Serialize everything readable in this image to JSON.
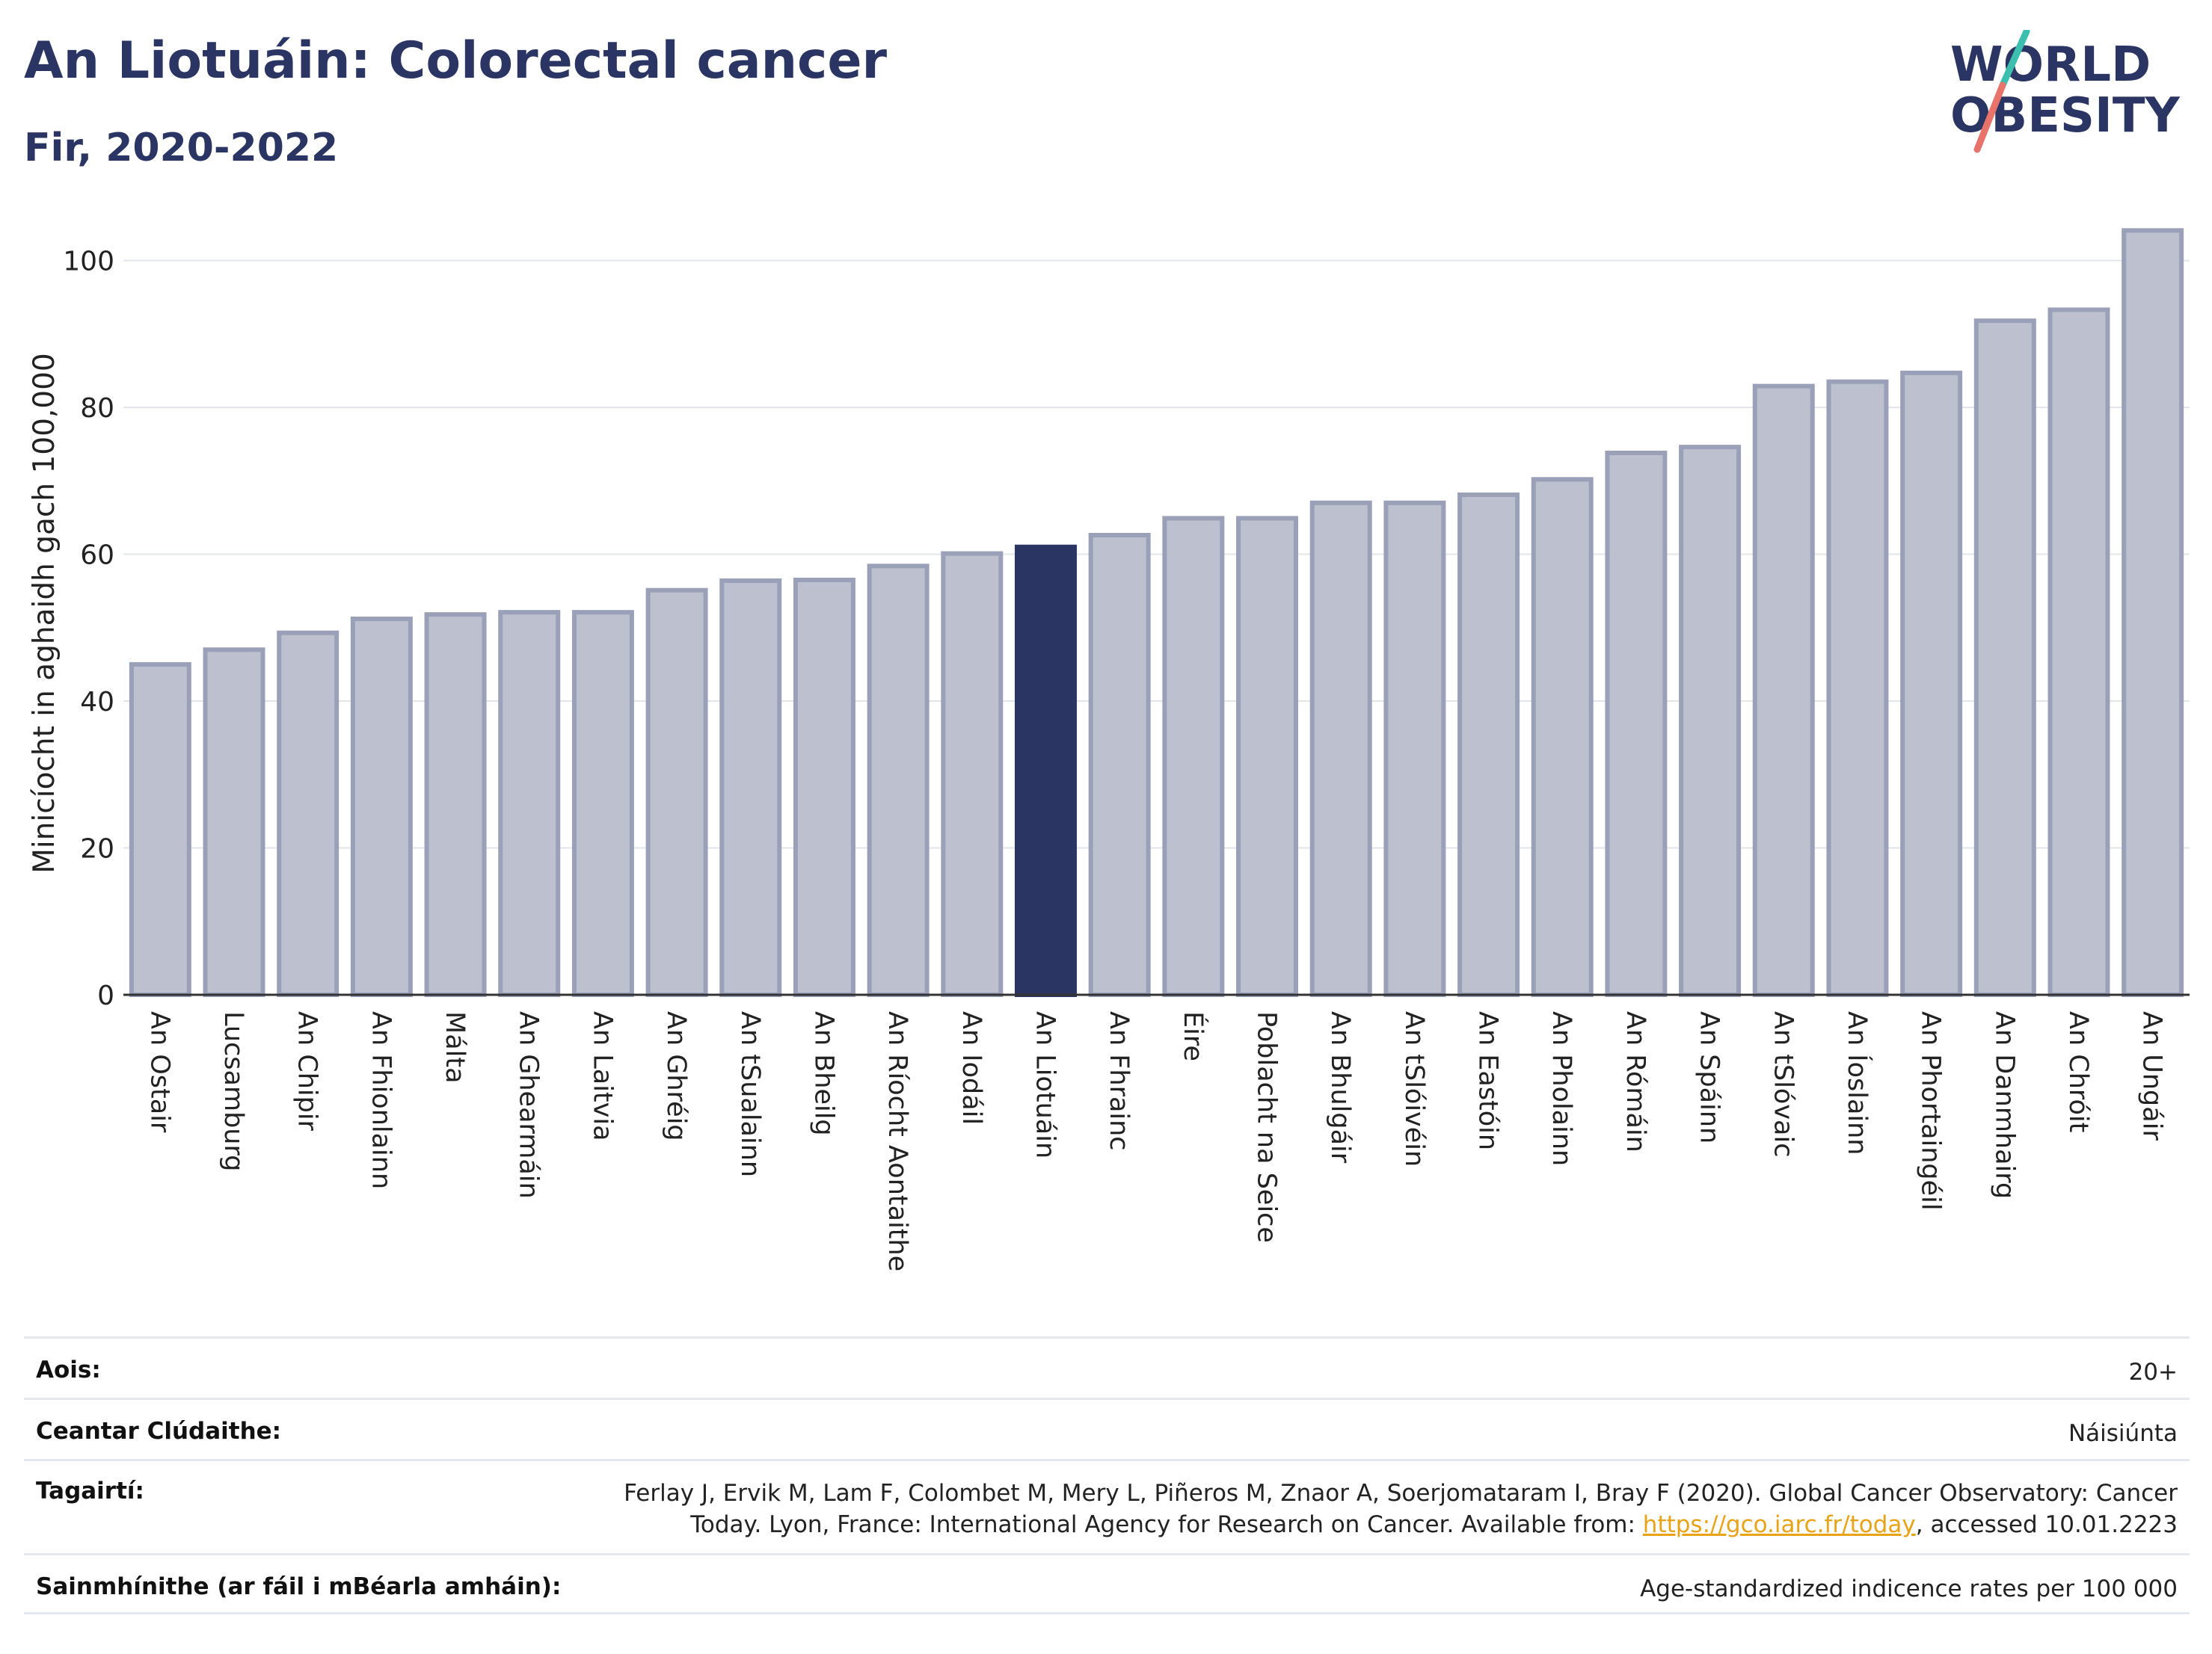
{
  "header": {
    "title": "An Liotuáin: Colorectal cancer",
    "subtitle": "Fir, 2020-2022"
  },
  "logo": {
    "line1": "WORLD",
    "line2": "OBESITY",
    "colors": {
      "text": "#2b3563",
      "slash_teal": "#3dbfb0",
      "slash_coral": "#e8736a"
    }
  },
  "chart_data": {
    "type": "bar",
    "title": "An Liotuáin: Colorectal cancer",
    "subtitle": "Fir, 2020-2022",
    "xlabel": "",
    "ylabel": "Minicíocht in aghaidh gach 100,000",
    "ylim": [
      0,
      108
    ],
    "yticks": [
      0,
      20,
      40,
      60,
      80,
      100
    ],
    "grid": true,
    "highlight": "An Liotuáin",
    "colors": {
      "bar": "#bcc0cf",
      "bar_edge": "#9aa0b8",
      "highlight": "#2b3563"
    },
    "categories": [
      "An Ostair",
      "Lucsamburg",
      "An Chipir",
      "An Fhionlainn",
      "Málta",
      "An Ghearmáin",
      "An Laitvia",
      "An Ghréig",
      "An tSualainn",
      "An Bheilg",
      "An Ríocht Aontaithe",
      "An Iodáil",
      "An Liotuáin",
      "An Fhrainc",
      "Éire",
      "Poblacht na Seice",
      "An Bhulgáir",
      "An tSlóivéin",
      "An Eastóin",
      "An Pholainn",
      "An Rómáin",
      "An Spáinn",
      "An tSlóvaic",
      "An Íoslainn",
      "An Phortaingéil",
      "An Danmhairg",
      "An Chróit",
      "An Ungáir"
    ],
    "values": [
      45,
      47,
      49.3,
      51.2,
      51.8,
      52.1,
      52.1,
      55.1,
      56.4,
      56.5,
      58.4,
      60.1,
      61,
      62.6,
      64.9,
      64.9,
      67,
      67,
      68.1,
      70.2,
      73.8,
      74.6,
      82.9,
      83.5,
      84.7,
      91.8,
      93.3,
      104.1
    ]
  },
  "info": {
    "age_label": "Aois:",
    "age_value": "20+",
    "coverage_label": "Ceantar Clúdaithe:",
    "coverage_value": "Náisiúnta",
    "refs_label": "Tagairtí:",
    "refs_line1": "Ferlay J, Ervik M, Lam F, Colombet M, Mery L, Piñeros M, Znaor A, Soerjomataram I, Bray F (2020). Global Cancer Observatory: Cancer",
    "refs_line2_pre": "Today. Lyon, France: International Agency for Research on Cancer. Available from: ",
    "refs_link": "https://gco.iarc.fr/today",
    "refs_line2_post": ", accessed 10.01.2223",
    "defs_label": "Sainmhínithe (ar fáil i mBéarla amháin):",
    "defs_value": "Age-standardized indicence rates per 100 000"
  }
}
